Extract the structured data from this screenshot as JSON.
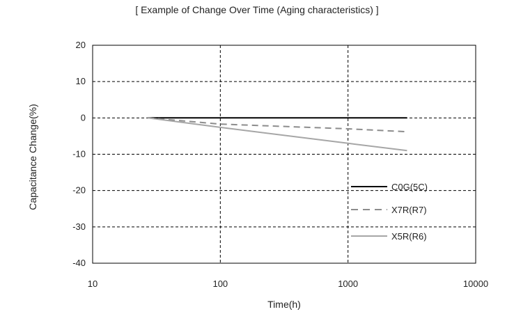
{
  "chart_data": {
    "type": "line",
    "title": "[ Example of Change Over Time (Aging characteristics) ]",
    "xlabel": "Time(h)",
    "ylabel": "Capacitance Change(%)",
    "x_scale": "log",
    "xlim": [
      10,
      10000
    ],
    "ylim": [
      -40,
      20
    ],
    "x_ticks": [
      10,
      100,
      1000,
      10000
    ],
    "x_tick_labels": [
      "10",
      "100",
      "1000",
      "10000"
    ],
    "y_ticks": [
      20,
      10,
      0,
      -10,
      -20,
      -30,
      -40
    ],
    "y_tick_labels": [
      "20",
      "10",
      "0",
      "-10",
      "-20",
      "-30",
      "-40"
    ],
    "grid": true,
    "legend_position": "bottom-right",
    "series": [
      {
        "name": "C0G(5C)",
        "color": "#000000",
        "dash": "solid",
        "x": [
          27,
          2900
        ],
        "y": [
          0,
          0
        ]
      },
      {
        "name": "X7R(R7)",
        "color": "#8c8c8c",
        "dash": "dashed",
        "x": [
          27,
          100,
          1000,
          2900
        ],
        "y": [
          0,
          -1.7,
          -3.0,
          -3.8
        ]
      },
      {
        "name": "X5R(R6)",
        "color": "#a6a6a6",
        "dash": "solid",
        "x": [
          27,
          100,
          1000,
          2900
        ],
        "y": [
          0,
          -2.6,
          -7.0,
          -9.0
        ]
      }
    ]
  }
}
